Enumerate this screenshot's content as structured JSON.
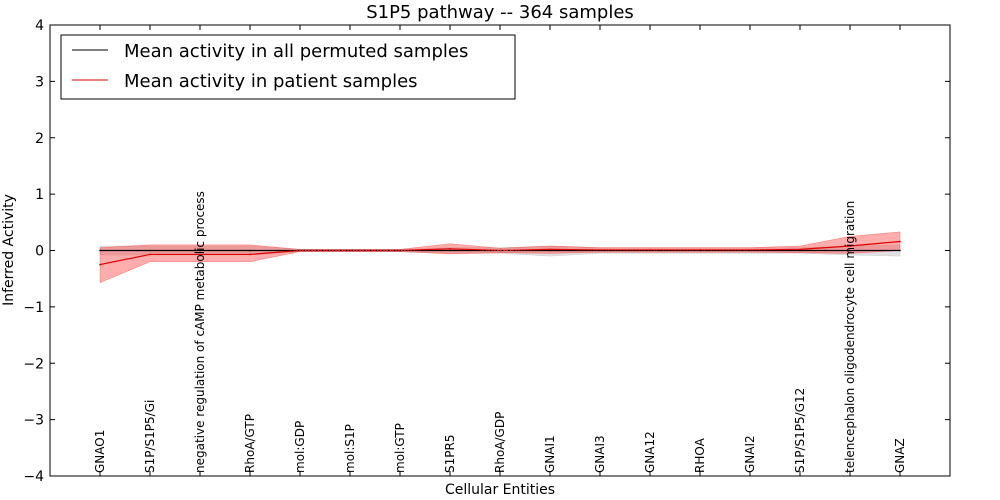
{
  "chart_data": {
    "type": "line",
    "title": "S1P5 pathway -- 364 samples",
    "xlabel": "Cellular Entities",
    "ylabel": "Inferred Activity",
    "ylim": [
      -4,
      4
    ],
    "yticks": [
      -4,
      -3,
      -2,
      -1,
      0,
      1,
      2,
      3,
      4
    ],
    "ytick_labels": [
      "−4",
      "−3",
      "−2",
      "−1",
      "0",
      "1",
      "2",
      "3",
      "4"
    ],
    "categories": [
      "GNAO1",
      "S1P/S1P5/Gi",
      "negative regulation of cAMP metabolic process",
      "RhoA/GTP",
      "mol:GDP",
      "mol:S1P",
      "mol:GTP",
      "S1PR5",
      "RhoA/GDP",
      "GNAI1",
      "GNAI3",
      "GNA12",
      "RHOA",
      "GNAI2",
      "S1P/S1P5/G12",
      "telencephalon oligodendrocyte cell migration",
      "GNAZ"
    ],
    "legend_position": "top-left",
    "series": [
      {
        "name": "Mean activity in all permuted samples",
        "color": "#000000",
        "values": [
          0.0,
          0.0,
          0.0,
          0.0,
          0.0,
          0.0,
          0.0,
          0.0,
          0.0,
          0.0,
          0.0,
          0.0,
          0.0,
          0.0,
          0.0,
          0.0,
          0.0
        ],
        "band_upper": [
          0.08,
          0.08,
          0.08,
          0.08,
          0.02,
          0.02,
          0.02,
          0.05,
          0.05,
          0.08,
          0.05,
          0.05,
          0.05,
          0.05,
          0.05,
          0.08,
          0.1
        ],
        "band_lower": [
          -0.08,
          -0.08,
          -0.08,
          -0.08,
          -0.02,
          -0.02,
          -0.02,
          -0.05,
          -0.05,
          -0.1,
          -0.05,
          -0.05,
          -0.05,
          -0.05,
          -0.05,
          -0.08,
          -0.1
        ],
        "band_color": "#bbbbbb"
      },
      {
        "name": "Mean activity in patient samples",
        "color": "#dd0000",
        "values": [
          -0.25,
          -0.07,
          -0.07,
          -0.07,
          0.0,
          0.0,
          0.0,
          0.03,
          0.0,
          0.02,
          0.01,
          0.01,
          0.01,
          0.01,
          0.02,
          0.08,
          0.16
        ],
        "band_upper": [
          0.05,
          0.1,
          0.1,
          0.1,
          0.02,
          0.02,
          0.02,
          0.12,
          0.04,
          0.08,
          0.05,
          0.05,
          0.05,
          0.05,
          0.08,
          0.25,
          0.33
        ],
        "band_lower": [
          -0.57,
          -0.2,
          -0.2,
          -0.2,
          -0.02,
          -0.02,
          -0.02,
          -0.06,
          -0.04,
          -0.05,
          -0.03,
          -0.03,
          -0.03,
          -0.03,
          -0.04,
          -0.05,
          0.0
        ],
        "band_color": "#ff3333"
      }
    ]
  }
}
